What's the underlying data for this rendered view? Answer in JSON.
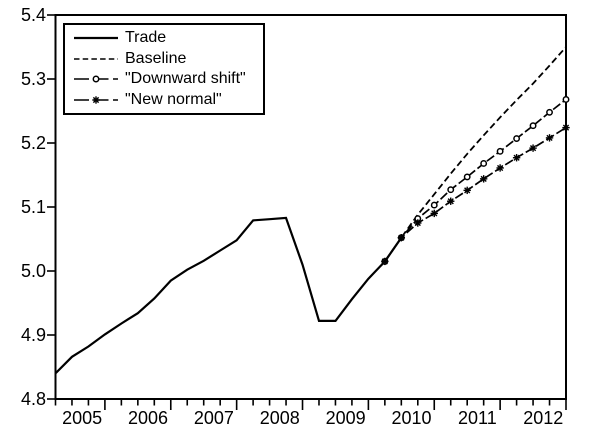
{
  "figure": {
    "background": "#ffffff",
    "ink_color": "#000000"
  },
  "legend": {
    "items": [
      {
        "id": "trade",
        "label": "Trade",
        "line_style": "solid",
        "marker": "none"
      },
      {
        "id": "baseline",
        "label": "Baseline",
        "line_style": "short-dash",
        "marker": "none"
      },
      {
        "id": "downward-shift",
        "label": "\"Downward shift\"",
        "line_style": "long-dash",
        "marker": "circle"
      },
      {
        "id": "new-normal",
        "label": "\"New normal\"",
        "line_style": "long-dash",
        "marker": "asterisk"
      }
    ]
  },
  "chart_data": {
    "type": "line",
    "title": "",
    "xlabel": "",
    "ylabel": "",
    "x_unit": "quarterly, decimal years",
    "xlim": [
      2004.75,
      2012.5
    ],
    "ylim": [
      4.8,
      5.4
    ],
    "grid": false,
    "legend_position": "top-left-inside",
    "y_ticks": [
      4.8,
      4.9,
      5.0,
      5.1,
      5.2,
      5.3,
      5.4
    ],
    "y_tick_labels": [
      "4.8",
      "4.9",
      "5.0",
      "5.1",
      "5.2",
      "5.3",
      "5.4"
    ],
    "x_tick_years": [
      "2005",
      "2006",
      "2007",
      "2008",
      "2009",
      "2010",
      "2011",
      "2012"
    ],
    "x_minor_tick_step": 0.25,
    "series": [
      {
        "id": "trade",
        "name": "Trade",
        "line_style": "solid",
        "marker": "none",
        "x": [
          2004.75,
          2005.0,
          2005.25,
          2005.5,
          2005.75,
          2006.0,
          2006.25,
          2006.5,
          2006.75,
          2007.0,
          2007.25,
          2007.5,
          2007.75,
          2008.0,
          2008.25,
          2008.5,
          2008.75,
          2009.0,
          2009.25,
          2009.5,
          2009.75,
          2010.0
        ],
        "values": [
          4.84,
          4.866,
          4.882,
          4.901,
          4.918,
          4.934,
          4.957,
          4.985,
          5.002,
          5.016,
          5.032,
          5.048,
          5.079,
          5.081,
          5.083,
          5.01,
          4.922,
          4.922,
          4.956,
          4.988,
          5.015,
          5.052
        ]
      },
      {
        "id": "baseline",
        "name": "Baseline",
        "line_style": "short-dash",
        "marker": "none",
        "x": [
          2009.75,
          2010.0,
          2010.25,
          2010.5,
          2010.75,
          2011.0,
          2011.25,
          2011.5,
          2011.75,
          2012.0,
          2012.25,
          2012.5
        ],
        "values": [
          5.015,
          5.052,
          5.088,
          5.12,
          5.152,
          5.183,
          5.212,
          5.24,
          5.267,
          5.293,
          5.321,
          5.35
        ]
      },
      {
        "id": "downward-shift",
        "name": "\"Downward shift\"",
        "line_style": "long-dash",
        "marker": "circle",
        "x": [
          2009.75,
          2010.0,
          2010.25,
          2010.5,
          2010.75,
          2011.0,
          2011.25,
          2011.5,
          2011.75,
          2012.0,
          2012.25,
          2012.5
        ],
        "values": [
          5.015,
          5.052,
          5.082,
          5.103,
          5.127,
          5.147,
          5.168,
          5.187,
          5.207,
          5.227,
          5.248,
          5.268
        ]
      },
      {
        "id": "new-normal",
        "name": "\"New normal\"",
        "line_style": "long-dash",
        "marker": "asterisk",
        "x": [
          2009.75,
          2010.0,
          2010.25,
          2010.5,
          2010.75,
          2011.0,
          2011.25,
          2011.5,
          2011.75,
          2012.0,
          2012.25,
          2012.5
        ],
        "values": [
          5.015,
          5.052,
          5.075,
          5.09,
          5.109,
          5.126,
          5.144,
          5.161,
          5.177,
          5.192,
          5.208,
          5.224
        ]
      }
    ]
  }
}
